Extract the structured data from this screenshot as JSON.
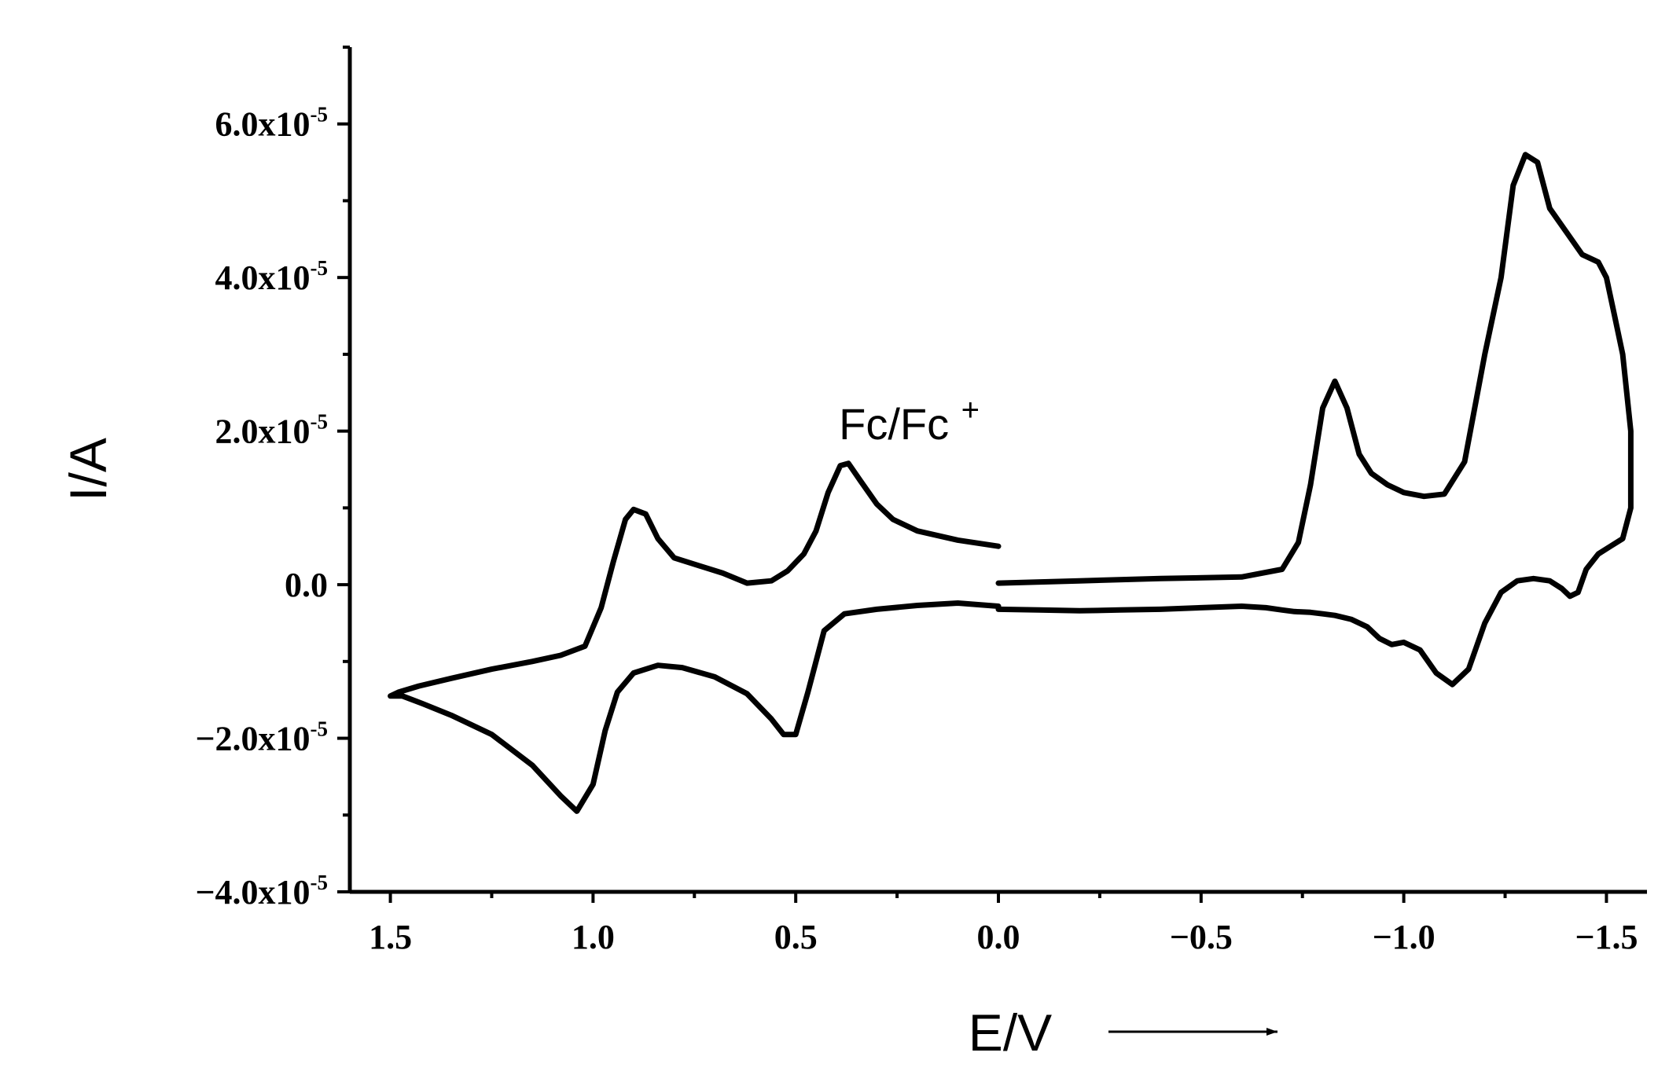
{
  "chart_data": {
    "type": "line",
    "title": "",
    "xlabel": "E/V",
    "ylabel": "I/A",
    "x_direction": "decreasing left to right",
    "xlim": [
      1.6,
      -1.6
    ],
    "ylim": [
      -4e-05,
      7e-05
    ],
    "grid": false,
    "legend": "none",
    "x_ticks": [
      {
        "value": 1.5,
        "label": "1.5"
      },
      {
        "value": 1.0,
        "label": "1.0"
      },
      {
        "value": 0.5,
        "label": "0.5"
      },
      {
        "value": 0.0,
        "label": "0.0"
      },
      {
        "value": -0.5,
        "label": "−0.5"
      },
      {
        "value": -1.0,
        "label": "−1.0"
      },
      {
        "value": -1.5,
        "label": "−1.5"
      }
    ],
    "y_ticks": [
      {
        "value": 6e-05,
        "mantissa": "6.0x10",
        "exponent": "-5"
      },
      {
        "value": 4e-05,
        "mantissa": "4.0x10",
        "exponent": "-5"
      },
      {
        "value": 2e-05,
        "mantissa": "2.0x10",
        "exponent": "-5"
      },
      {
        "value": 0.0,
        "mantissa": "0.0",
        "exponent": ""
      },
      {
        "value": -2e-05,
        "mantissa": "−2.0x10",
        "exponent": "-5"
      },
      {
        "value": -4e-05,
        "mantissa": "−4.0x10",
        "exponent": "-5"
      }
    ],
    "annotations": [
      {
        "text": "Fc/Fc",
        "superscript": "+",
        "x": 0.22,
        "y": 2.1e-05
      }
    ],
    "series": [
      {
        "segment": "cv-left",
        "x": [
          0.0,
          0.1,
          0.2,
          0.26,
          0.3,
          0.34,
          0.37,
          0.39,
          0.42,
          0.45,
          0.48,
          0.52,
          0.56,
          0.62,
          0.68,
          0.74,
          0.8,
          0.84,
          0.87,
          0.9,
          0.92,
          0.95,
          0.98,
          1.02,
          1.08,
          1.15,
          1.25,
          1.35,
          1.43,
          1.48,
          1.5,
          1.47,
          1.42,
          1.35,
          1.25,
          1.15,
          1.08,
          1.04,
          1.0,
          0.97,
          0.94,
          0.9,
          0.84,
          0.78,
          0.7,
          0.62,
          0.56,
          0.53,
          0.5,
          0.47,
          0.43,
          0.38,
          0.3,
          0.2,
          0.1,
          0.0
        ],
        "y": [
          5e-06,
          5.8e-06,
          7e-06,
          8.5e-06,
          1.05e-05,
          1.35e-05,
          1.58e-05,
          1.55e-05,
          1.2e-05,
          7e-06,
          4e-06,
          1.8e-06,
          5e-07,
          2e-07,
          1.5e-06,
          2.5e-06,
          3.5e-06,
          6e-06,
          9.2e-06,
          9.8e-06,
          8.5e-06,
          3e-06,
          -3e-06,
          -8e-06,
          -9.2e-06,
          -1e-05,
          -1.1e-05,
          -1.22e-05,
          -1.32e-05,
          -1.4e-05,
          -1.45e-05,
          -1.45e-05,
          -1.55e-05,
          -1.7e-05,
          -1.95e-05,
          -2.35e-05,
          -2.75e-05,
          -2.95e-05,
          -2.6e-05,
          -1.9e-05,
          -1.4e-05,
          -1.15e-05,
          -1.05e-05,
          -1.08e-05,
          -1.2e-05,
          -1.42e-05,
          -1.75e-05,
          -1.95e-05,
          -1.95e-05,
          -1.4e-05,
          -6e-06,
          -3.8e-06,
          -3.2e-06,
          -2.7e-06,
          -2.4e-06,
          -2.8e-06
        ]
      },
      {
        "segment": "cv-right",
        "x": [
          0.0,
          -0.2,
          -0.4,
          -0.6,
          -0.7,
          -0.74,
          -0.77,
          -0.8,
          -0.83,
          -0.86,
          -0.89,
          -0.92,
          -0.96,
          -1.0,
          -1.05,
          -1.1,
          -1.15,
          -1.2,
          -1.24,
          -1.27,
          -1.3,
          -1.33,
          -1.36,
          -1.4,
          -1.44,
          -1.48,
          -1.5,
          -1.52,
          -1.54,
          -1.56,
          -1.56,
          -1.54,
          -1.51,
          -1.48,
          -1.45,
          -1.43,
          -1.41,
          -1.39,
          -1.36,
          -1.32,
          -1.28,
          -1.24,
          -1.2,
          -1.16,
          -1.12,
          -1.08,
          -1.04,
          -1.0,
          -0.97,
          -0.94,
          -0.91,
          -0.87,
          -0.83,
          -0.8,
          -0.77,
          -0.73,
          -0.7,
          -0.66,
          -0.6,
          -0.5,
          -0.4,
          -0.3,
          -0.2,
          -0.1,
          0.0
        ],
        "y": [
          2e-07,
          5e-07,
          8e-07,
          1e-06,
          2e-06,
          5.5e-06,
          1.3e-05,
          2.3e-05,
          2.65e-05,
          2.3e-05,
          1.7e-05,
          1.45e-05,
          1.3e-05,
          1.2e-05,
          1.15e-05,
          1.18e-05,
          1.6e-05,
          3e-05,
          4e-05,
          5.2e-05,
          5.6e-05,
          5.5e-05,
          4.9e-05,
          4.6e-05,
          4.3e-05,
          4.2e-05,
          4e-05,
          3.5e-05,
          3e-05,
          2e-05,
          1e-05,
          6e-06,
          5e-06,
          4e-06,
          2e-06,
          -1e-06,
          -1.5e-06,
          -5e-07,
          5e-07,
          8e-07,
          5e-07,
          -1e-06,
          -5e-06,
          -1.1e-05,
          -1.3e-05,
          -1.15e-05,
          -8.5e-06,
          -7.5e-06,
          -7.8e-06,
          -7e-06,
          -5.5e-06,
          -4.5e-06,
          -4e-06,
          -3.8e-06,
          -3.6e-06,
          -3.5e-06,
          -3.3e-06,
          -3e-06,
          -2.8e-06,
          -3e-06,
          -3.2e-06,
          -3.3e-06,
          -3.4e-06,
          -3.3e-06,
          -3.2e-06
        ]
      }
    ]
  }
}
